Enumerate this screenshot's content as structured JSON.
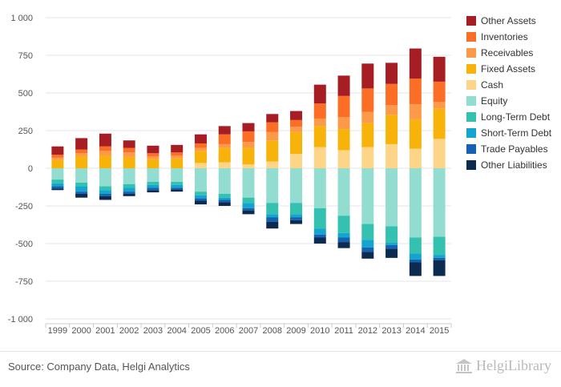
{
  "colors": {
    "other_assets": "#a61d24",
    "inventories": "#fc6d26",
    "receivables": "#fc9a4a",
    "fixed_assets": "#f8b30a",
    "cash": "#fdd589",
    "equity": "#93ddd0",
    "long_term_debt": "#34c1b0",
    "short_term_debt": "#12a5cf",
    "trade_payables": "#1462b0",
    "other_liabilities": "#0d2a4f"
  },
  "chart_data": {
    "type": "bar",
    "stacked": true,
    "title": "",
    "xlabel": "",
    "ylabel": "",
    "ylim": [
      -1000,
      1000
    ],
    "y_ticks": [
      1000,
      750,
      500,
      250,
      0,
      -250,
      -500,
      -750,
      -1000
    ],
    "y_tick_labels": [
      "1 000",
      "750",
      "500",
      "250",
      "0",
      "-250",
      "-500",
      "-750",
      "-1 000"
    ],
    "grid": true,
    "legend_position": "right",
    "categories": [
      "1999",
      "2000",
      "2001",
      "2002",
      "2003",
      "2004",
      "2005",
      "2006",
      "2007",
      "2008",
      "2009",
      "2010",
      "2011",
      "2012",
      "2013",
      "2014",
      "2015"
    ],
    "series": [
      {
        "name": "Cash",
        "key": "cash",
        "values": [
          0,
          0,
          0,
          0,
          0,
          0,
          35,
          40,
          25,
          45,
          95,
          140,
          120,
          140,
          160,
          130,
          195
        ]
      },
      {
        "name": "Fixed Assets",
        "key": "fixed_assets",
        "values": [
          55,
          80,
          85,
          75,
          60,
          65,
          80,
          95,
          110,
          140,
          145,
          140,
          140,
          160,
          195,
          195,
          200
        ]
      },
      {
        "name": "Receivables",
        "key": "receivables",
        "values": [
          15,
          20,
          30,
          30,
          20,
          20,
          20,
          25,
          40,
          55,
          35,
          50,
          80,
          75,
          65,
          100,
          45
        ]
      },
      {
        "name": "Inventories",
        "key": "inventories",
        "values": [
          20,
          25,
          30,
          30,
          20,
          20,
          30,
          65,
          70,
          65,
          45,
          100,
          140,
          155,
          140,
          170,
          135
        ]
      },
      {
        "name": "Other Assets",
        "key": "other_assets",
        "values": [
          55,
          75,
          85,
          50,
          50,
          50,
          60,
          55,
          55,
          55,
          60,
          125,
          135,
          165,
          140,
          200,
          165
        ]
      },
      {
        "name": "Equity",
        "key": "equity",
        "values": [
          -75,
          -95,
          -120,
          -105,
          -90,
          -90,
          -155,
          -170,
          -195,
          -230,
          -230,
          -265,
          -315,
          -370,
          -385,
          -460,
          -455
        ]
      },
      {
        "name": "Long-Term Debt",
        "key": "long_term_debt",
        "values": [
          -25,
          -25,
          -25,
          -25,
          -20,
          -20,
          -25,
          -25,
          -35,
          -75,
          -75,
          -135,
          -115,
          -105,
          -110,
          -105,
          -120
        ]
      },
      {
        "name": "Short-Term Debt",
        "key": "short_term_debt",
        "values": [
          -20,
          -35,
          -25,
          -25,
          -20,
          -20,
          -20,
          -15,
          -35,
          -20,
          -20,
          -40,
          -30,
          -50,
          -15,
          -40,
          -20
        ]
      },
      {
        "name": "Trade Payables",
        "key": "trade_payables",
        "values": [
          -15,
          -15,
          -15,
          -15,
          -15,
          -10,
          -15,
          -15,
          -15,
          -30,
          -20,
          -20,
          -30,
          -30,
          -25,
          -20,
          -15
        ]
      },
      {
        "name": "Other Liabilities",
        "key": "other_liabilities",
        "values": [
          -10,
          -25,
          -25,
          -15,
          -15,
          -15,
          -25,
          -25,
          -25,
          -45,
          -25,
          -40,
          -40,
          -45,
          -60,
          -90,
          -105
        ]
      }
    ]
  },
  "legend": {
    "items": [
      {
        "label": "Other Assets",
        "color": "#a61d24"
      },
      {
        "label": "Inventories",
        "color": "#fc6d26"
      },
      {
        "label": "Receivables",
        "color": "#fc9a4a"
      },
      {
        "label": "Fixed Assets",
        "color": "#f8b30a"
      },
      {
        "label": "Cash",
        "color": "#fdd589"
      },
      {
        "label": "Equity",
        "color": "#93ddd0"
      },
      {
        "label": "Long-Term Debt",
        "color": "#34c1b0"
      },
      {
        "label": "Short-Term Debt",
        "color": "#12a5cf"
      },
      {
        "label": "Trade Payables",
        "color": "#1462b0"
      },
      {
        "label": "Other Liabilities",
        "color": "#0d2a4f"
      }
    ]
  },
  "footer": {
    "source": "Source: Company Data, Helgi Analytics",
    "brand": "HelgiLibrary"
  }
}
